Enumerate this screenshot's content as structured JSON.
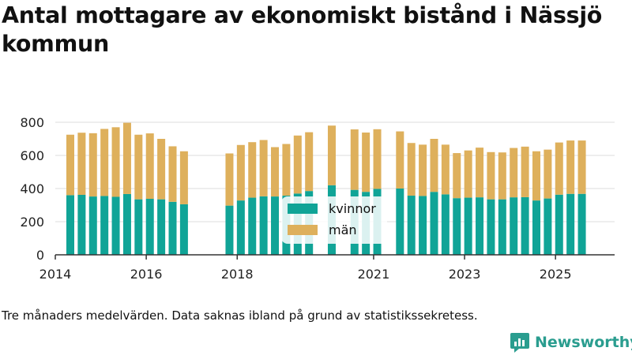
{
  "title": "Antal mottagare av ekonomiskt bistånd i Nässjö kommun",
  "note": "Tre månaders medelvärden. Data saknas ibland på grund av statistikssekretess.",
  "brand": "Newsworthy",
  "colors": {
    "kvinnor": "#10a497",
    "man": "#deb05c",
    "grid": "#dddddd",
    "axis": "#333333"
  },
  "chart_data": {
    "type": "bar",
    "stacked": true,
    "title": "Antal mottagare av ekonomiskt bistånd i Nässjö kommun",
    "xlabel": "",
    "ylabel": "",
    "ylim": [
      0,
      800
    ],
    "xlim": [
      2014.0,
      2026.3
    ],
    "yticks": [
      0,
      200,
      400,
      600,
      800
    ],
    "xticks": [
      {
        "value": 2014,
        "label": "2014"
      },
      {
        "value": 2016,
        "label": "2016"
      },
      {
        "value": 2018,
        "label": "2018"
      },
      {
        "value": 2021,
        "label": "2021"
      },
      {
        "value": 2023,
        "label": "2023"
      },
      {
        "value": 2025,
        "label": "2025"
      }
    ],
    "legend_position": "center",
    "x": [
      2014.33,
      2014.58,
      2014.83,
      2015.08,
      2015.33,
      2015.58,
      2015.83,
      2016.08,
      2016.33,
      2016.58,
      2016.83,
      2017.83,
      2018.08,
      2018.33,
      2018.58,
      2018.83,
      2019.08,
      2019.33,
      2019.58,
      2020.08,
      2020.58,
      2020.83,
      2021.08,
      2021.58,
      2021.83,
      2022.08,
      2022.33,
      2022.58,
      2022.83,
      2023.08,
      2023.33,
      2023.58,
      2023.83,
      2024.08,
      2024.33,
      2024.58,
      2024.83,
      2025.08,
      2025.33,
      2025.58
    ],
    "series": [
      {
        "name": "kvinnor",
        "values": [
          360,
          362,
          352,
          355,
          350,
          367,
          335,
          338,
          335,
          320,
          305,
          297,
          328,
          345,
          353,
          352,
          357,
          370,
          385,
          420,
          392,
          380,
          398,
          400,
          357,
          355,
          380,
          365,
          342,
          345,
          347,
          335,
          335,
          347,
          348,
          328,
          340,
          363,
          368,
          368
        ]
      },
      {
        "name": "män",
        "values": [
          365,
          375,
          382,
          405,
          420,
          430,
          390,
          395,
          365,
          335,
          320,
          315,
          335,
          335,
          340,
          298,
          312,
          350,
          355,
          360,
          365,
          358,
          360,
          345,
          318,
          310,
          320,
          300,
          272,
          285,
          300,
          285,
          283,
          298,
          305,
          297,
          295,
          315,
          322,
          322
        ]
      }
    ]
  }
}
